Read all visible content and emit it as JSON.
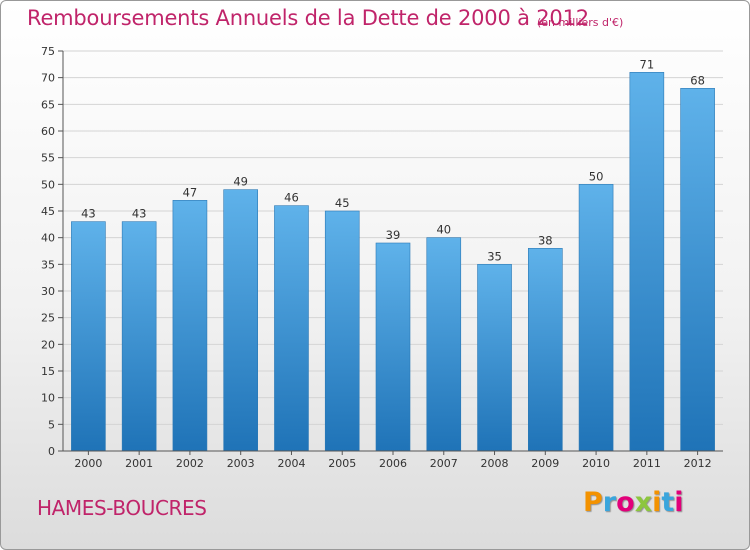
{
  "header": {
    "title": "Remboursements Annuels de la Dette de 2000 à 2012",
    "subtitle": "(en milliers d'€)"
  },
  "footer": {
    "commune": "HAMES-BOUCRES",
    "logo_letters": [
      "P",
      "r",
      "o",
      "x",
      "i",
      "t",
      "i"
    ],
    "logo_colors": [
      "#f39200",
      "#3aa5dc",
      "#e2007a",
      "#8dc63f",
      "#f39200",
      "#3aa5dc",
      "#e2007a"
    ]
  },
  "colors": {
    "title": "#c0246a",
    "bar_top": "#5fb2ea",
    "bar_bottom": "#1f73b7"
  },
  "chart_data": {
    "type": "bar",
    "title": "Remboursements Annuels de la Dette de 2000 à 2012",
    "xlabel": "",
    "ylabel": "",
    "categories": [
      "2000",
      "2001",
      "2002",
      "2003",
      "2004",
      "2005",
      "2006",
      "2007",
      "2008",
      "2009",
      "2010",
      "2011",
      "2012"
    ],
    "values": [
      43,
      43,
      47,
      49,
      46,
      45,
      39,
      40,
      35,
      38,
      50,
      71,
      68
    ],
    "ylim": [
      0,
      75
    ],
    "yticks": [
      0,
      5,
      10,
      15,
      20,
      25,
      30,
      35,
      40,
      45,
      50,
      55,
      60,
      65,
      70,
      75
    ],
    "grid": true,
    "data_labels": true
  }
}
